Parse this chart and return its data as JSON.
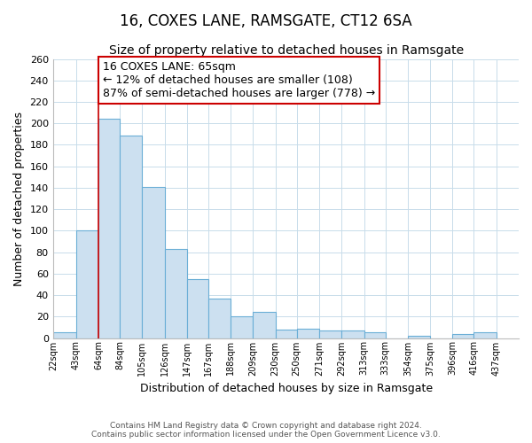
{
  "title": "16, COXES LANE, RAMSGATE, CT12 6SA",
  "subtitle": "Size of property relative to detached houses in Ramsgate",
  "xlabel": "Distribution of detached houses by size in Ramsgate",
  "ylabel": "Number of detached properties",
  "bar_left_edges": [
    22,
    43,
    64,
    84,
    105,
    126,
    147,
    167,
    188,
    209,
    230,
    250,
    271,
    292,
    313,
    333,
    354,
    375,
    396,
    416
  ],
  "bar_widths": [
    21,
    21,
    20,
    21,
    21,
    21,
    20,
    21,
    21,
    21,
    20,
    21,
    21,
    21,
    20,
    21,
    21,
    21,
    20,
    21
  ],
  "bar_heights": [
    5,
    100,
    204,
    189,
    141,
    83,
    55,
    37,
    20,
    24,
    8,
    9,
    7,
    7,
    5,
    0,
    2,
    0,
    4,
    5
  ],
  "bar_color": "#cce0f0",
  "bar_edge_color": "#6aaed6",
  "property_line_x": 64,
  "property_line_color": "#cc0000",
  "ylim": [
    0,
    260
  ],
  "yticks": [
    0,
    20,
    40,
    60,
    80,
    100,
    120,
    140,
    160,
    180,
    200,
    220,
    240,
    260
  ],
  "xtick_labels": [
    "22sqm",
    "43sqm",
    "64sqm",
    "84sqm",
    "105sqm",
    "126sqm",
    "147sqm",
    "167sqm",
    "188sqm",
    "209sqm",
    "230sqm",
    "250sqm",
    "271sqm",
    "292sqm",
    "313sqm",
    "333sqm",
    "354sqm",
    "375sqm",
    "396sqm",
    "416sqm",
    "437sqm"
  ],
  "xtick_positions": [
    22,
    43,
    64,
    84,
    105,
    126,
    147,
    167,
    188,
    209,
    230,
    250,
    271,
    292,
    313,
    333,
    354,
    375,
    396,
    416,
    437
  ],
  "annotation_title": "16 COXES LANE: 65sqm",
  "annotation_line1": "← 12% of detached houses are smaller (108)",
  "annotation_line2": "87% of semi-detached houses are larger (778) →",
  "footer_line1": "Contains HM Land Registry data © Crown copyright and database right 2024.",
  "footer_line2": "Contains public sector information licensed under the Open Government Licence v3.0.",
  "bg_color": "#ffffff",
  "grid_color": "#c8dcea",
  "title_fontsize": 12,
  "subtitle_fontsize": 10,
  "annotation_fontsize": 9,
  "ylabel_fontsize": 9,
  "xlabel_fontsize": 9,
  "footer_fontsize": 6.5,
  "xlim_left": 22,
  "xlim_right": 458
}
